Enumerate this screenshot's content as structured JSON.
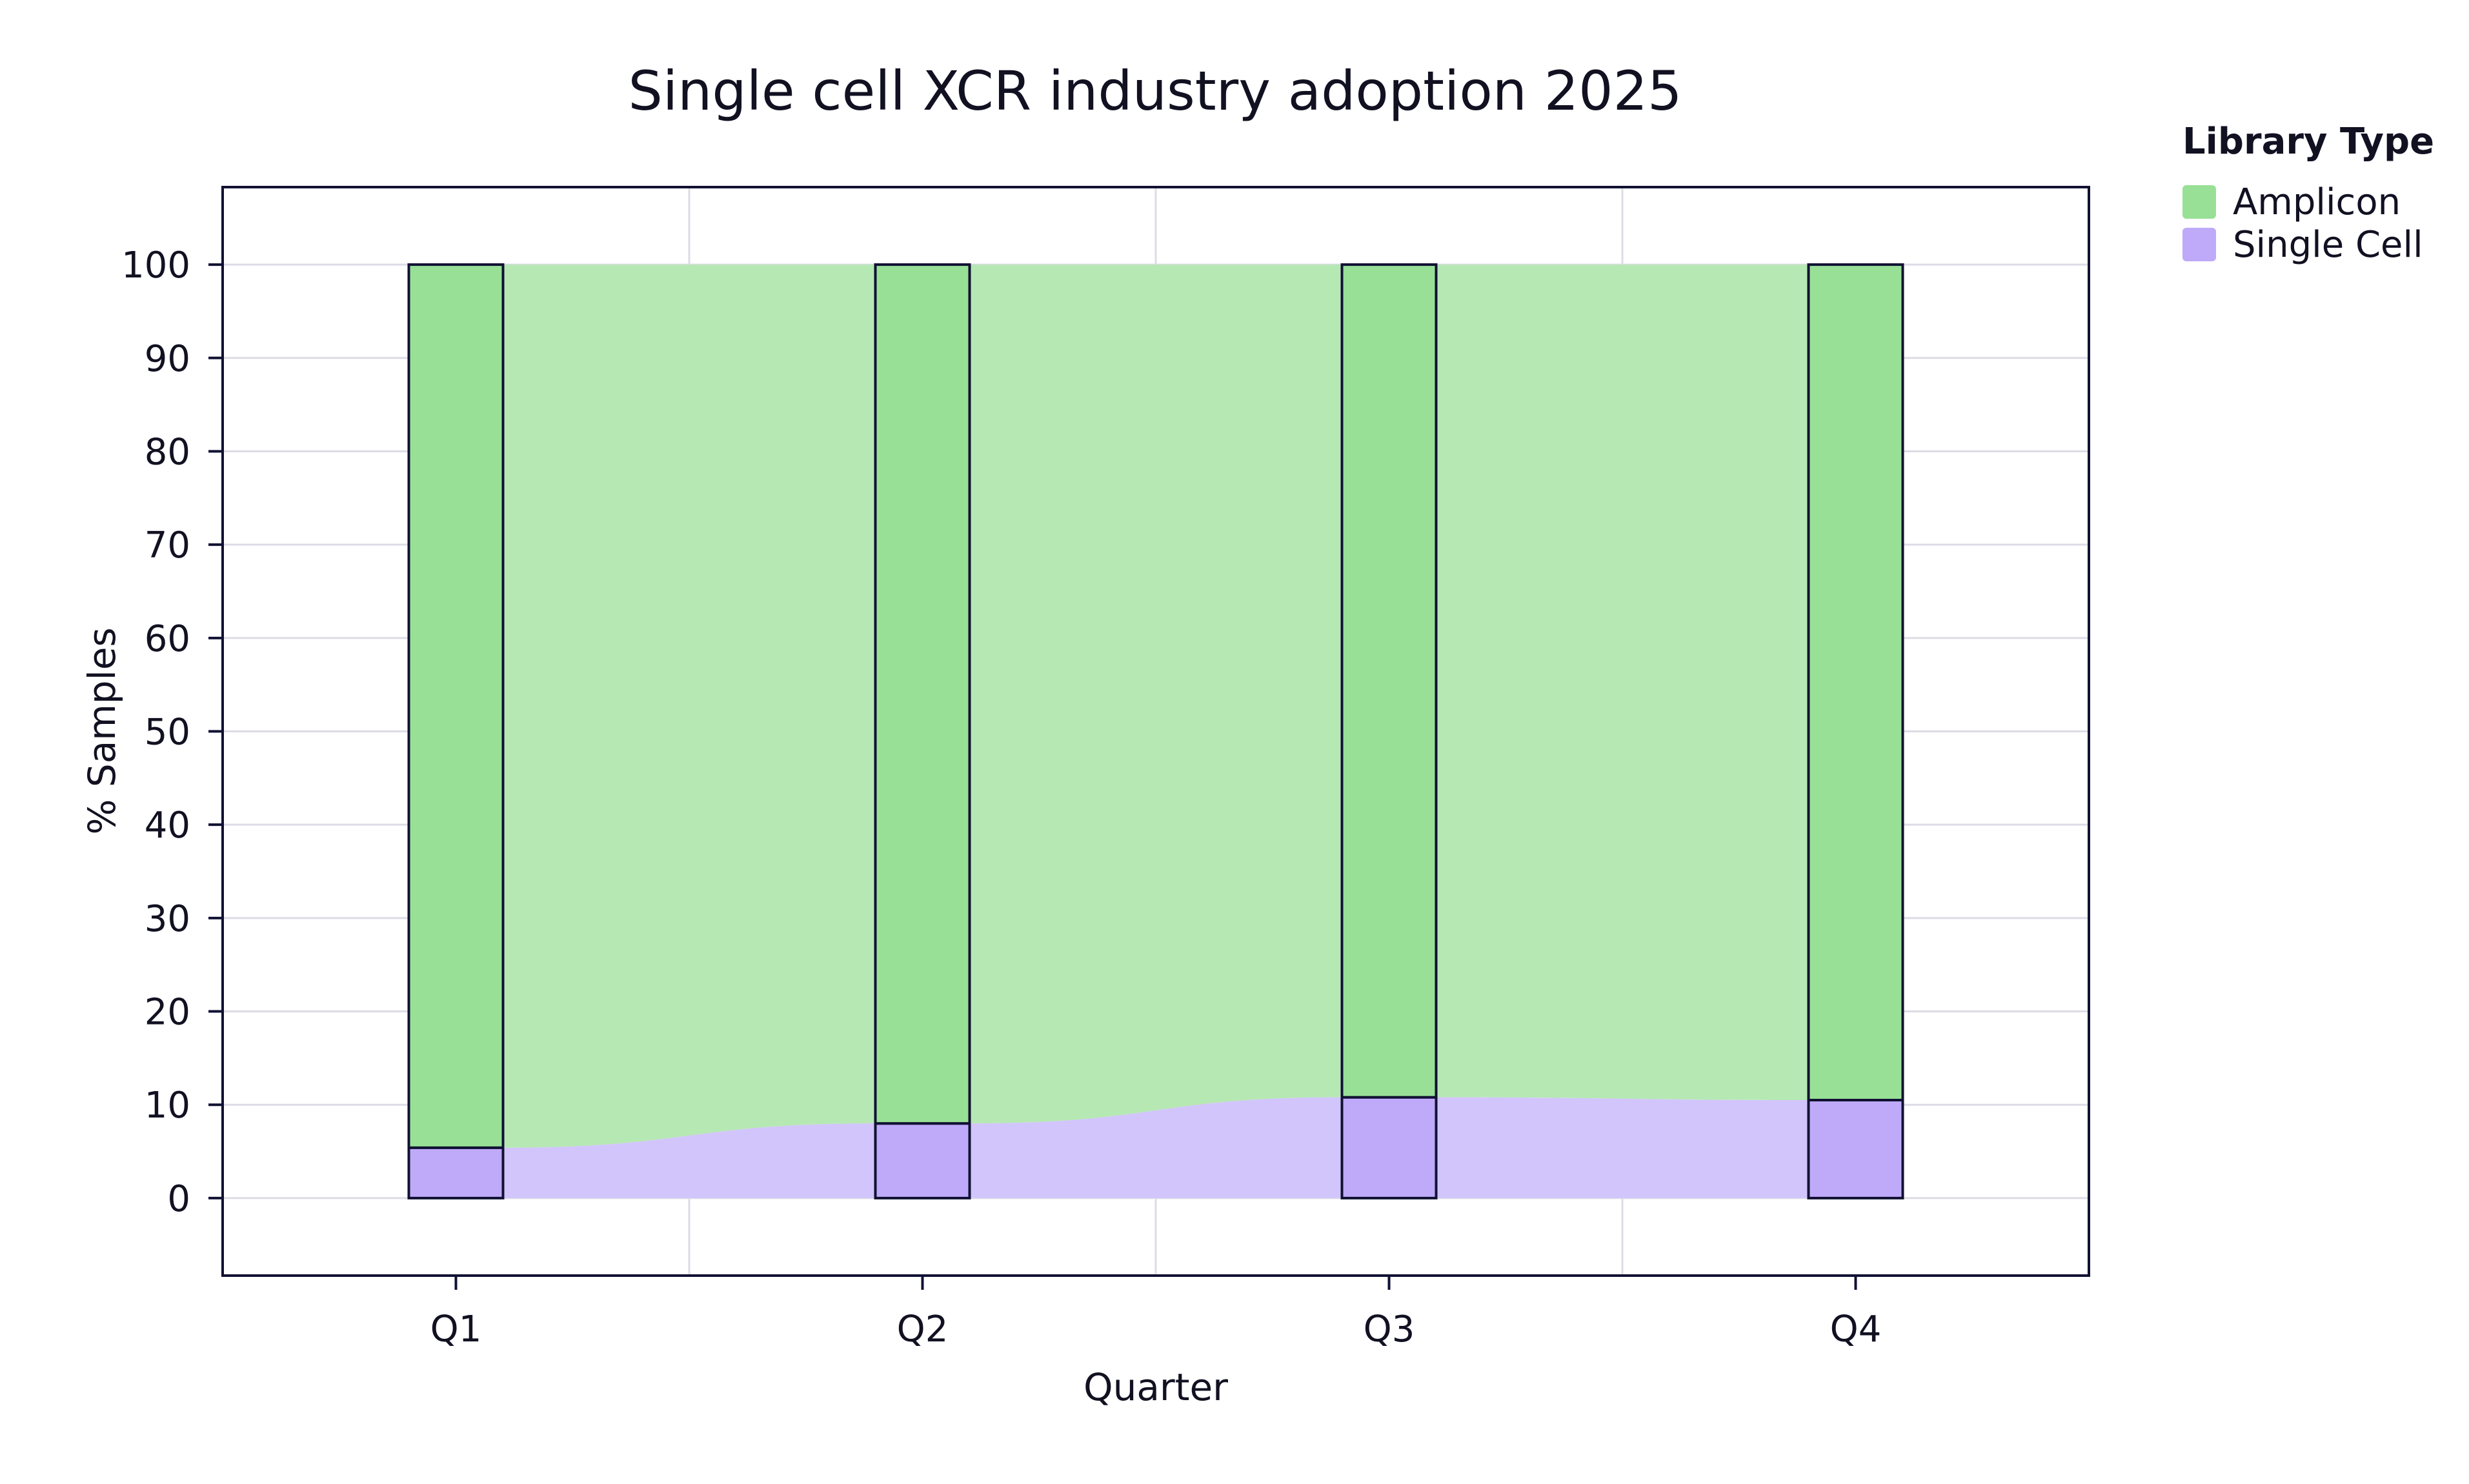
{
  "chart_data": {
    "type": "bar",
    "title": "Single cell XCR industry adoption 2025",
    "xlabel": "Quarter",
    "ylabel": "% Samples",
    "categories": [
      "Q1",
      "Q2",
      "Q3",
      "Q4"
    ],
    "ylim": [
      -8.3,
      108.3
    ],
    "yticks": [
      0,
      10,
      20,
      30,
      40,
      50,
      60,
      70,
      80,
      90,
      100
    ],
    "grid": true,
    "stacked": true,
    "smooth_area_fill": true,
    "series": [
      {
        "name": "Single Cell",
        "values": [
          5.4,
          8.0,
          10.8,
          10.5
        ],
        "color": "#bfaaf9",
        "fill_color": "#d2c5fb"
      },
      {
        "name": "Amplicon",
        "values": [
          94.6,
          92.0,
          89.2,
          89.5
        ],
        "color": "#98e096",
        "fill_color": "#b6e8b4"
      }
    ],
    "legend": {
      "title": "Library Type",
      "position": "outside-right-top",
      "entries": [
        "Amplicon",
        "Single Cell"
      ]
    }
  },
  "colors": {
    "axis": "#111133",
    "grid": "#dcdce6",
    "bar_edge": "#111133"
  }
}
